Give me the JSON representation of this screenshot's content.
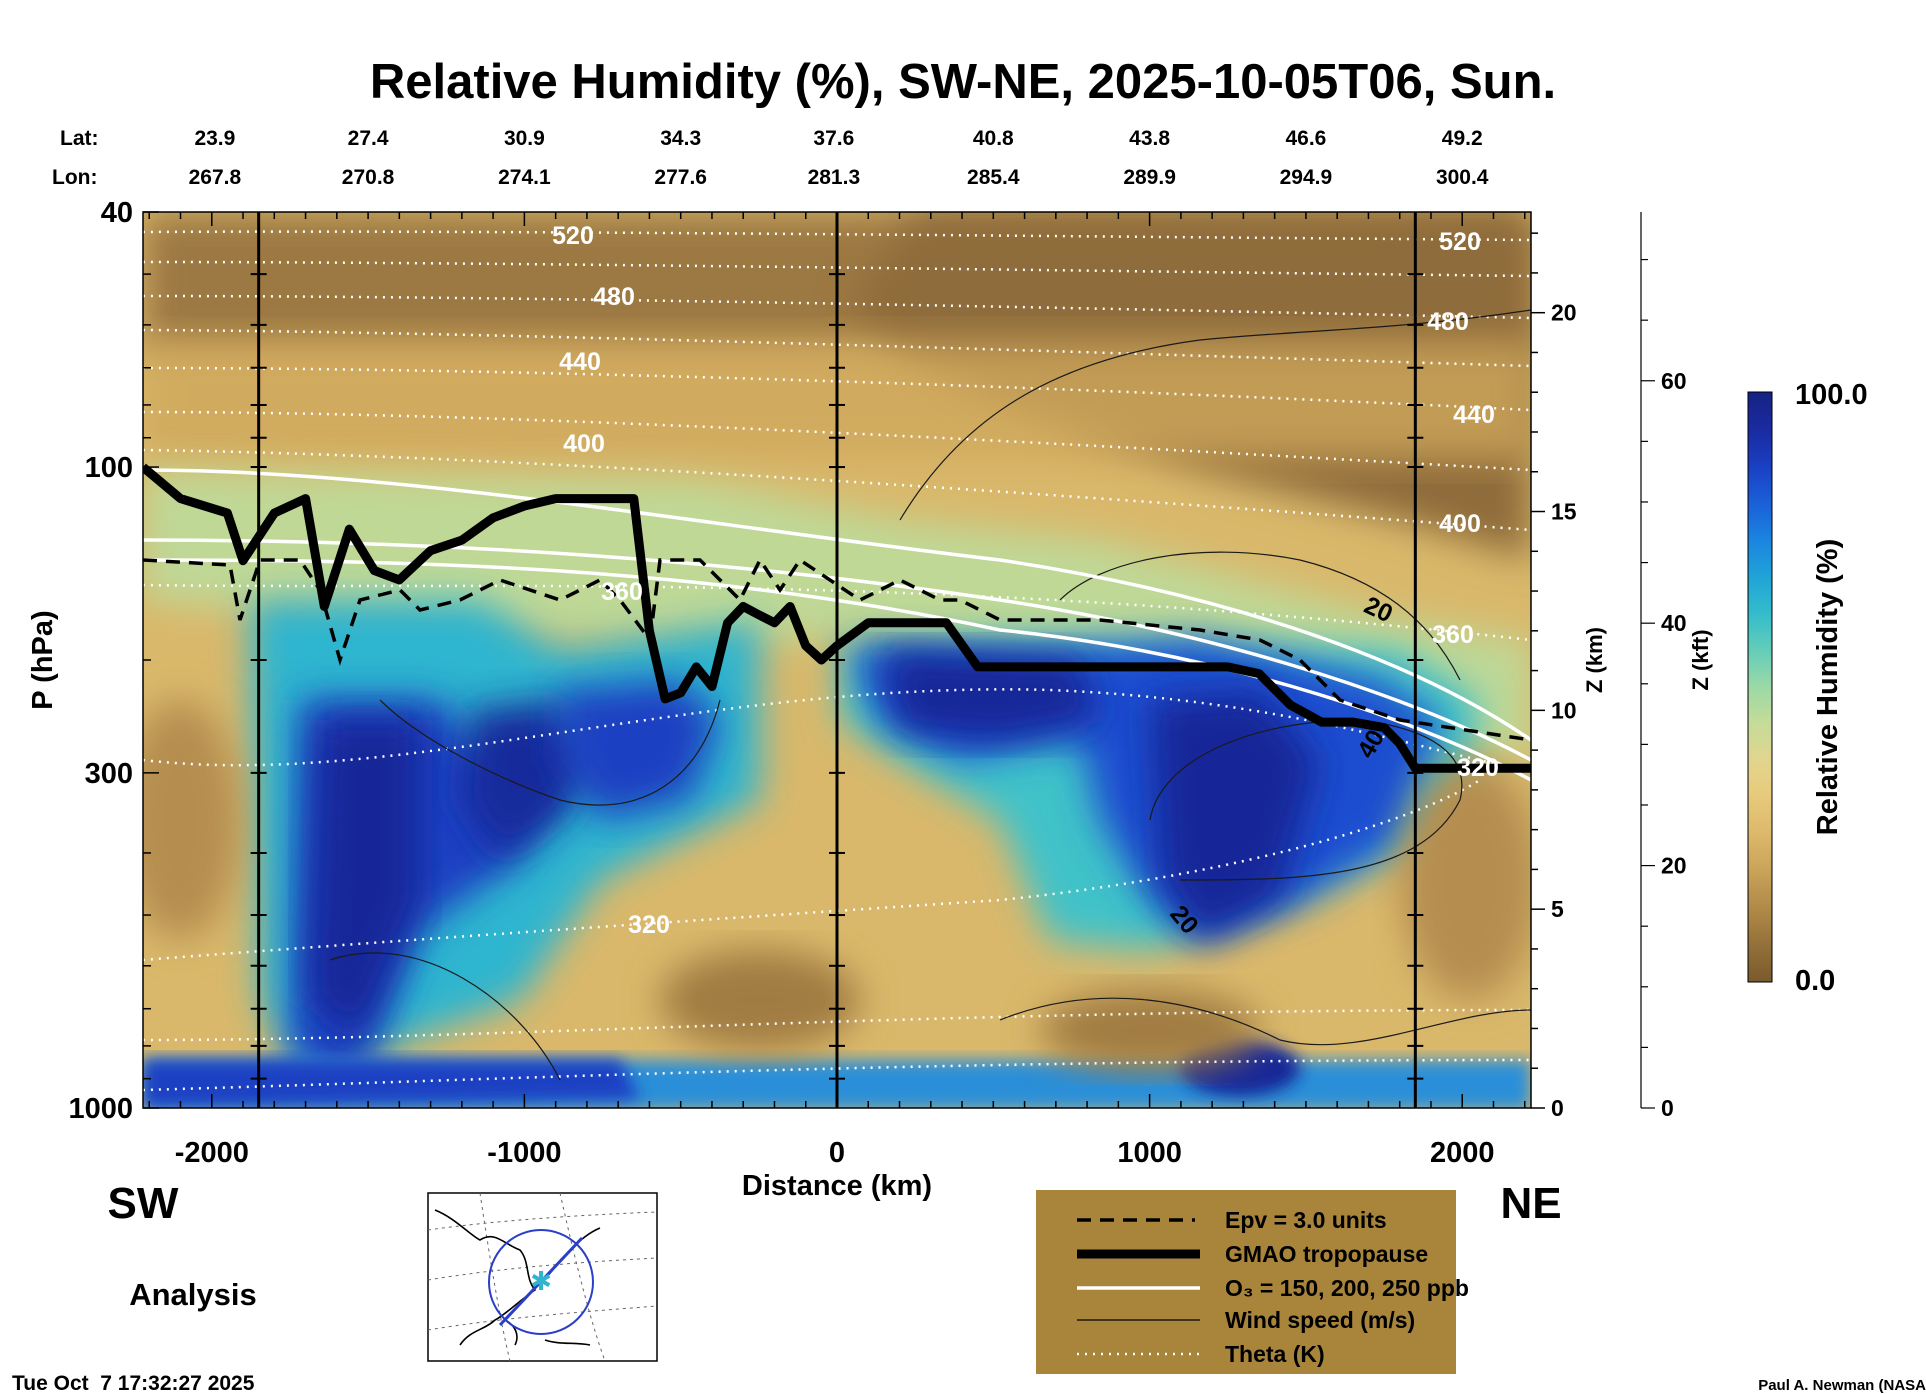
{
  "title": "Relative Humidity (%), SW-NE, 2025-10-05T06, Sun.",
  "coords": {
    "lat_label": "Lat:",
    "lon_label": "Lon:",
    "lat": [
      "23.9",
      "27.4",
      "30.9",
      "34.3",
      "37.6",
      "40.8",
      "43.8",
      "46.6",
      "49.2"
    ],
    "lon": [
      "267.8",
      "270.8",
      "274.1",
      "277.6",
      "281.3",
      "285.4",
      "289.9",
      "294.9",
      "300.4"
    ]
  },
  "direction": {
    "left": "SW",
    "right": "NE"
  },
  "analysis_label": "Analysis",
  "timestamp": "Tue Oct  7 17:32:27 2025",
  "credit": "Paul A. Newman (NASA",
  "colorbar": {
    "label": "Relative Humidity (%)",
    "max_label": "100.0",
    "min_label": "0.0",
    "colors": [
      "#7a5a2c",
      "#94713a",
      "#b08a48",
      "#c9a35a",
      "#dcb86a",
      "#e7c97c",
      "#e2d58e",
      "#c5dc98",
      "#9bd9a6",
      "#63cdb9",
      "#33bccb",
      "#1fa3d8",
      "#1b84df",
      "#1a5fd8",
      "#1a3fc2",
      "#1a2aa0",
      "#152283"
    ]
  },
  "legend": {
    "items": [
      {
        "style": "dashed",
        "label": "Epv = 3.0 units"
      },
      {
        "style": "thick",
        "label": "GMAO tropopause"
      },
      {
        "style": "white",
        "label": "O₃ = 150, 200, 250 ppb"
      },
      {
        "style": "thin",
        "label": "Wind speed (m/s)"
      },
      {
        "style": "dotted",
        "label": "Theta (K)"
      }
    ],
    "background": "#a9853c"
  },
  "contour_labels": {
    "theta": [
      "520",
      "480",
      "440",
      "400",
      "360",
      "320",
      "320",
      "520",
      "480",
      "440",
      "400",
      "360"
    ],
    "wind": [
      "20",
      "40",
      "20"
    ]
  },
  "chart_data": {
    "type": "heatmap",
    "title": "Relative Humidity (%), SW-NE, 2025-10-05T06, Sun.",
    "xlabel": "Distance (km)",
    "ylabel": "P (hPa)",
    "xlim": [
      -2220,
      2220
    ],
    "ylim_hpa": [
      1000,
      40
    ],
    "y_scale": "log",
    "x_ticks": [
      -2000,
      -1000,
      0,
      1000,
      2000
    ],
    "y_ticks": [
      40,
      100,
      300,
      1000
    ],
    "z_km_ticks": [
      0,
      5,
      10,
      15,
      20
    ],
    "z_kft_ticks": [
      0,
      20,
      40,
      60
    ],
    "z_km_label": "Z (km)",
    "z_kft_label": "Z (kft)",
    "colorbar_range": [
      0,
      100
    ],
    "vertical_markers_km": [
      -1850,
      0,
      1850
    ],
    "tropopause_hpa": {
      "x": [
        -2220,
        -2100,
        -1950,
        -1900,
        -1800,
        -1700,
        -1640,
        -1560,
        -1480,
        -1400,
        -1300,
        -1200,
        -1100,
        -1000,
        -900,
        -800,
        -650,
        -600,
        -550,
        -500,
        -450,
        -400,
        -350,
        -300,
        -250,
        -200,
        -150,
        -100,
        -50,
        0,
        100,
        200,
        350,
        450,
        600,
        800,
        1000,
        1150,
        1250,
        1350,
        1450,
        1550,
        1650,
        1750,
        1800,
        1850,
        2000,
        2220
      ],
      "y": [
        100,
        112,
        118,
        140,
        118,
        112,
        165,
        125,
        145,
        150,
        135,
        130,
        120,
        115,
        112,
        112,
        112,
        180,
        230,
        225,
        205,
        220,
        175,
        165,
        170,
        175,
        165,
        190,
        200,
        190,
        175,
        175,
        175,
        205,
        205,
        205,
        205,
        205,
        205,
        210,
        235,
        250,
        250,
        255,
        270,
        295,
        295,
        295
      ]
    }
  }
}
